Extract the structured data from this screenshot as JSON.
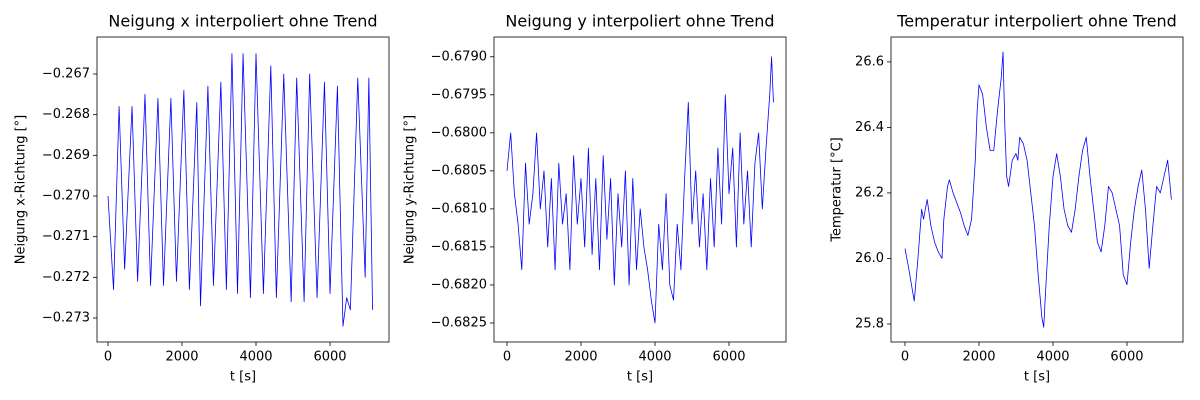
{
  "chart_data": [
    {
      "type": "line",
      "title": "Neigung x interpoliert ohne Trend",
      "xlabel": "t [s]",
      "ylabel": "Neigung x-Richtung [°]",
      "color": "#0000ff",
      "xlim": [
        -297,
        7594
      ],
      "xticks": [
        0,
        2000,
        4000,
        6000
      ],
      "ylim": [
        -0.27359,
        -0.26609
      ],
      "yticks": [
        {
          "value": -0.273,
          "label": "−0.273"
        },
        {
          "value": -0.272,
          "label": "−0.272"
        },
        {
          "value": -0.271,
          "label": "−0.271"
        },
        {
          "value": -0.27,
          "label": "−0.270"
        },
        {
          "value": -0.269,
          "label": "−0.269"
        },
        {
          "value": -0.268,
          "label": "−0.268"
        },
        {
          "value": -0.267,
          "label": "−0.267"
        }
      ],
      "x": [
        0,
        150,
        300,
        450,
        650,
        800,
        1000,
        1150,
        1350,
        1500,
        1700,
        1850,
        2050,
        2200,
        2400,
        2500,
        2700,
        2850,
        3050,
        3200,
        3350,
        3500,
        3650,
        3850,
        4000,
        4200,
        4400,
        4550,
        4750,
        4950,
        5100,
        5300,
        5450,
        5650,
        5850,
        6000,
        6200,
        6350,
        6450,
        6550,
        6750,
        6950,
        7050,
        7150
      ],
      "values": [
        -0.27,
        -0.2723,
        -0.2678,
        -0.2718,
        -0.2678,
        -0.2721,
        -0.2675,
        -0.2722,
        -0.2676,
        -0.2722,
        -0.2676,
        -0.2721,
        -0.2674,
        -0.2723,
        -0.2677,
        -0.2727,
        -0.2673,
        -0.2722,
        -0.2672,
        -0.2723,
        -0.2665,
        -0.2724,
        -0.2665,
        -0.2725,
        -0.2665,
        -0.2724,
        -0.2668,
        -0.2725,
        -0.267,
        -0.2726,
        -0.2671,
        -0.2726,
        -0.267,
        -0.2725,
        -0.2672,
        -0.2724,
        -0.2673,
        -0.2732,
        -0.2725,
        -0.2728,
        -0.2671,
        -0.272,
        -0.2671,
        -0.2728
      ]
    },
    {
      "type": "line",
      "title": "Neigung y interpoliert ohne Trend",
      "xlabel": "t [s]",
      "ylabel": "Neigung y-Richtung [°]",
      "color": "#0000ff",
      "xlim": [
        -351,
        7540
      ],
      "xticks": [
        0,
        2000,
        4000,
        6000
      ],
      "ylim": [
        -0.68275,
        -0.67874
      ],
      "yticks": [
        {
          "value": -0.6825,
          "label": "−0.6825"
        },
        {
          "value": -0.682,
          "label": "−0.6820"
        },
        {
          "value": -0.6815,
          "label": "−0.6815"
        },
        {
          "value": -0.681,
          "label": "−0.6810"
        },
        {
          "value": -0.6805,
          "label": "−0.6805"
        },
        {
          "value": -0.68,
          "label": "−0.6800"
        },
        {
          "value": -0.6795,
          "label": "−0.6795"
        },
        {
          "value": -0.679,
          "label": "−0.6790"
        }
      ],
      "x": [
        0,
        100,
        200,
        300,
        400,
        500,
        600,
        700,
        800,
        900,
        1000,
        1100,
        1200,
        1300,
        1400,
        1500,
        1600,
        1700,
        1800,
        1900,
        2000,
        2100,
        2200,
        2300,
        2400,
        2500,
        2600,
        2700,
        2800,
        2900,
        3000,
        3100,
        3200,
        3300,
        3400,
        3500,
        3600,
        3700,
        3800,
        3900,
        4000,
        4100,
        4200,
        4300,
        4400,
        4500,
        4600,
        4700,
        4800,
        4900,
        5000,
        5100,
        5200,
        5300,
        5400,
        5500,
        5600,
        5700,
        5800,
        5900,
        6000,
        6100,
        6200,
        6300,
        6400,
        6500,
        6600,
        6700,
        6800,
        6900,
        7000,
        7100,
        7150,
        7200
      ],
      "values": [
        -0.6805,
        -0.68,
        -0.6808,
        -0.6812,
        -0.6818,
        -0.6804,
        -0.6812,
        -0.6808,
        -0.68,
        -0.681,
        -0.6805,
        -0.6815,
        -0.6806,
        -0.6818,
        -0.6804,
        -0.6812,
        -0.6808,
        -0.6818,
        -0.6803,
        -0.6812,
        -0.6806,
        -0.6815,
        -0.6802,
        -0.6816,
        -0.6806,
        -0.6818,
        -0.6803,
        -0.6814,
        -0.6806,
        -0.682,
        -0.6808,
        -0.6815,
        -0.6805,
        -0.682,
        -0.6806,
        -0.6818,
        -0.681,
        -0.6815,
        -0.6818,
        -0.6822,
        -0.6825,
        -0.6812,
        -0.6818,
        -0.6808,
        -0.682,
        -0.6822,
        -0.6812,
        -0.6818,
        -0.6806,
        -0.6796,
        -0.6812,
        -0.6805,
        -0.6815,
        -0.6808,
        -0.6818,
        -0.6806,
        -0.6815,
        -0.6802,
        -0.6812,
        -0.6795,
        -0.6808,
        -0.6802,
        -0.6815,
        -0.68,
        -0.6812,
        -0.6805,
        -0.6815,
        -0.6804,
        -0.68,
        -0.681,
        -0.6802,
        -0.6795,
        -0.679,
        -0.6796
      ]
    },
    {
      "type": "line",
      "title": "Temperatur interpoliert ohne Trend",
      "xlabel": "t [s]",
      "ylabel": "Temperatur [°C]",
      "color": "#0000ff",
      "xlim": [
        -378,
        7514
      ],
      "xticks": [
        0,
        2000,
        4000,
        6000
      ],
      "ylim": [
        25.745,
        26.676
      ],
      "yticks": [
        25.8,
        {
          "value": 26,
          "label": "26.0"
        },
        26.2,
        26.4,
        26.6
      ],
      "x": [
        0,
        100,
        250,
        350,
        450,
        500,
        600,
        700,
        800,
        900,
        1000,
        1050,
        1150,
        1200,
        1300,
        1400,
        1500,
        1600,
        1700,
        1800,
        1900,
        1950,
        2000,
        2100,
        2200,
        2300,
        2400,
        2500,
        2600,
        2650,
        2700,
        2750,
        2800,
        2900,
        3000,
        3050,
        3100,
        3200,
        3300,
        3400,
        3500,
        3600,
        3700,
        3750,
        3800,
        3900,
        4000,
        4100,
        4200,
        4300,
        4400,
        4500,
        4600,
        4700,
        4800,
        4900,
        5000,
        5100,
        5200,
        5300,
        5400,
        5500,
        5600,
        5700,
        5800,
        5900,
        6000,
        6100,
        6200,
        6300,
        6400,
        6500,
        6600,
        6700,
        6800,
        6900,
        7000,
        7100,
        7200
      ],
      "values": [
        26.03,
        25.97,
        25.87,
        26.0,
        26.15,
        26.12,
        26.18,
        26.1,
        26.05,
        26.02,
        26.0,
        26.12,
        26.22,
        26.24,
        26.2,
        26.17,
        26.14,
        26.1,
        26.07,
        26.12,
        26.3,
        26.45,
        26.53,
        26.5,
        26.4,
        26.33,
        26.33,
        26.45,
        26.55,
        26.63,
        26.4,
        26.25,
        26.22,
        26.3,
        26.32,
        26.3,
        26.37,
        26.35,
        26.3,
        26.2,
        26.1,
        25.95,
        25.82,
        25.79,
        25.9,
        26.1,
        26.25,
        26.32,
        26.25,
        26.15,
        26.1,
        26.08,
        26.15,
        26.25,
        26.33,
        26.37,
        26.25,
        26.15,
        26.05,
        26.02,
        26.1,
        26.22,
        26.2,
        26.15,
        26.1,
        25.95,
        25.92,
        26.05,
        26.15,
        26.22,
        26.27,
        26.15,
        25.97,
        26.1,
        26.22,
        26.2,
        26.25,
        26.3,
        26.18
      ]
    }
  ]
}
